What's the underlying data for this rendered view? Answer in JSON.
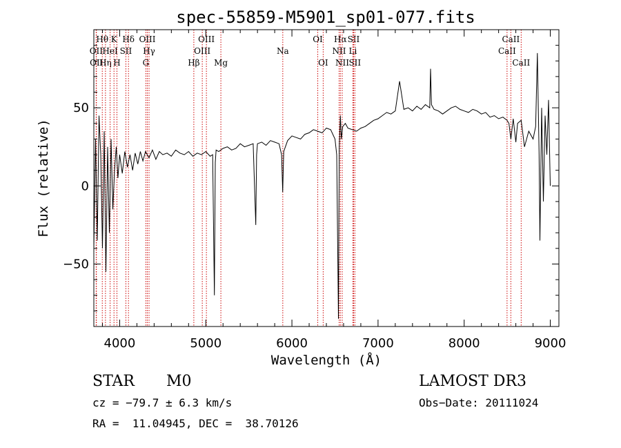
{
  "chart_data": {
    "type": "line",
    "title": "spec-55859-M5901_sp01-077.fits",
    "xlabel": "Wavelength (Å)",
    "ylabel": "Flux (relative)",
    "xlim": [
      3700,
      9100
    ],
    "ylim": [
      -90,
      100
    ],
    "xticks": [
      4000,
      5000,
      6000,
      7000,
      8000,
      9000
    ],
    "yticks": [
      -50,
      0,
      50
    ],
    "series": [
      {
        "name": "flux",
        "x": [
          3700,
          3720,
          3740,
          3760,
          3780,
          3800,
          3820,
          3840,
          3860,
          3880,
          3900,
          3920,
          3940,
          3960,
          3980,
          4000,
          4030,
          4060,
          4090,
          4120,
          4150,
          4180,
          4210,
          4240,
          4270,
          4300,
          4340,
          4380,
          4420,
          4460,
          4500,
          4550,
          4600,
          4650,
          4700,
          4750,
          4800,
          4850,
          4900,
          4950,
          5000,
          5050,
          5080,
          5100,
          5110,
          5120,
          5150,
          5200,
          5250,
          5300,
          5350,
          5400,
          5450,
          5500,
          5550,
          5580,
          5590,
          5600,
          5650,
          5700,
          5750,
          5800,
          5850,
          5880,
          5893,
          5905,
          5950,
          6000,
          6050,
          6100,
          6150,
          6200,
          6250,
          6300,
          6350,
          6400,
          6450,
          6500,
          6520,
          6540,
          6550,
          6563,
          6575,
          6590,
          6620,
          6650,
          6700,
          6750,
          6800,
          6850,
          6900,
          6950,
          7000,
          7050,
          7100,
          7150,
          7200,
          7250,
          7300,
          7350,
          7400,
          7450,
          7500,
          7550,
          7600,
          7610,
          7620,
          7650,
          7700,
          7750,
          7800,
          7850,
          7900,
          7950,
          8000,
          8050,
          8100,
          8150,
          8200,
          8250,
          8300,
          8350,
          8400,
          8450,
          8498,
          8520,
          8542,
          8570,
          8600,
          8620,
          8662,
          8700,
          8750,
          8800,
          8830,
          8850,
          8870,
          8880,
          8900,
          8920,
          8940,
          8960,
          8980,
          9000
        ],
        "values": [
          -40,
          30,
          -35,
          45,
          20,
          -40,
          35,
          -55,
          25,
          -30,
          30,
          -15,
          10,
          25,
          5,
          20,
          8,
          22,
          12,
          20,
          10,
          21,
          14,
          22,
          16,
          22,
          18,
          23,
          17,
          22,
          20,
          21,
          19,
          23,
          21,
          20,
          22,
          19,
          21,
          20,
          22,
          19,
          20,
          -70,
          15,
          23,
          22,
          24,
          25,
          23,
          24,
          27,
          25,
          26,
          27,
          -25,
          20,
          27,
          28,
          26,
          29,
          28,
          27,
          20,
          -4,
          22,
          29,
          32,
          31,
          30,
          33,
          34,
          36,
          35,
          34,
          37,
          36,
          30,
          20,
          -85,
          25,
          45,
          30,
          38,
          40,
          37,
          36,
          35,
          37,
          38,
          40,
          42,
          43,
          45,
          47,
          46,
          48,
          67,
          49,
          50,
          48,
          51,
          49,
          52,
          50,
          75,
          52,
          49,
          48,
          46,
          48,
          50,
          51,
          49,
          48,
          47,
          49,
          48,
          46,
          47,
          44,
          45,
          43,
          44,
          42,
          40,
          30,
          43,
          28,
          40,
          42,
          25,
          35,
          30,
          38,
          85,
          20,
          -35,
          50,
          -10,
          45,
          20,
          55,
          0
        ]
      }
    ],
    "lines": [
      {
        "name": "OII",
        "x": 3727,
        "row": 2
      },
      {
        "name": "OII",
        "x": 3730,
        "row": 3
      },
      {
        "name": "Hθ",
        "x": 3798,
        "row": 1
      },
      {
        "name": "Hη",
        "x": 3835,
        "row": 3
      },
      {
        "name": "HeI",
        "x": 3889,
        "row": 2
      },
      {
        "name": "K",
        "x": 3934,
        "row": 1
      },
      {
        "name": "H",
        "x": 3968,
        "row": 3
      },
      {
        "name": "SII",
        "x": 4072,
        "row": 2
      },
      {
        "name": "Hδ",
        "x": 4102,
        "row": 1
      },
      {
        "name": "G",
        "x": 4304,
        "row": 3
      },
      {
        "name": "OIII",
        "x": 4321,
        "row": 1
      },
      {
        "name": "Hγ",
        "x": 4341,
        "row": 2
      },
      {
        "name": "Hβ",
        "x": 4861,
        "row": 3
      },
      {
        "name": "OIII",
        "x": 4959,
        "row": 2
      },
      {
        "name": "OIII",
        "x": 5007,
        "row": 1
      },
      {
        "name": "Mg",
        "x": 5175,
        "row": 3
      },
      {
        "name": "Na",
        "x": 5894,
        "row": 2
      },
      {
        "name": "OI",
        "x": 6300,
        "row": 1
      },
      {
        "name": "OI",
        "x": 6363,
        "row": 3
      },
      {
        "name": "NII",
        "x": 6548,
        "row": 2
      },
      {
        "name": "Hα",
        "x": 6563,
        "row": 1
      },
      {
        "name": "NII",
        "x": 6584,
        "row": 3
      },
      {
        "name": "SII",
        "x": 6716,
        "row": 1
      },
      {
        "name": "SII",
        "x": 6731,
        "row": 3
      },
      {
        "name": "Li",
        "x": 6708,
        "row": 2
      },
      {
        "name": "CaII",
        "x": 8498,
        "row": 2
      },
      {
        "name": "CaII",
        "x": 8542,
        "row": 1
      },
      {
        "name": "CaII",
        "x": 8662,
        "row": 3
      }
    ],
    "line_color": "#cc0000"
  },
  "info": {
    "class": "STAR",
    "subclass": "M0",
    "survey": "LAMOST DR3",
    "cz": "cz = −79.7 ± 6.3 km/s",
    "obs_date": "Obs−Date: 20111024",
    "coords": "RA =  11.04945, DEC =  38.70126"
  }
}
